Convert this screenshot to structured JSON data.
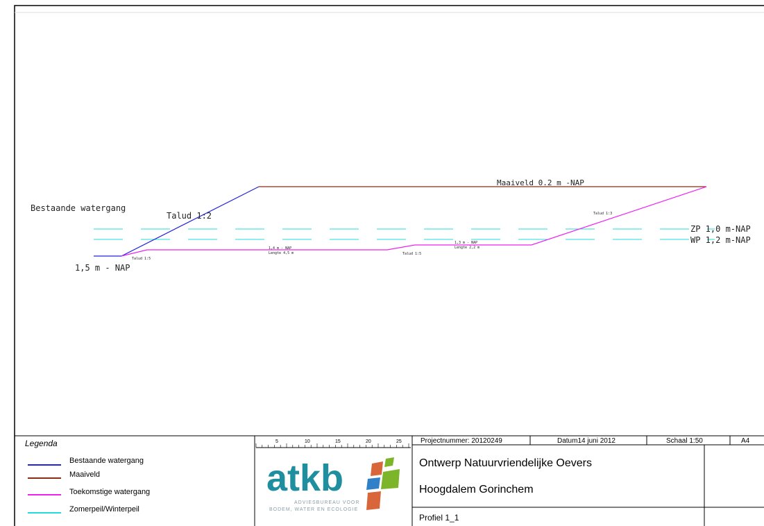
{
  "drawing": {
    "title_left": "Bestaande watergang",
    "talud_12": "Talud 1:2",
    "depth_left": "1,5 m - NAP",
    "maaiveld_label": "Maaiveld 0.2 m -NAP",
    "zp_label": "ZP 1,0 m-NAP",
    "wp_label": "WP 1,2 m-NAP",
    "talud_13": "Talud 1:3",
    "talud_15_left": "Talud 1:5",
    "talud_15_mid": "Talud 1:5",
    "depth_14": "1,4 m - NAP",
    "length_45": "Lengte 4,5 m",
    "depth_13": "1,3 m - NAP",
    "length_22": "Lengte 2,2 m"
  },
  "colors": {
    "bestaande": "#2222dd",
    "maaiveld": "#8b2b14",
    "toekomstig": "#ee22ee",
    "peil": "#22dddd",
    "logo_dark": "#1f8fa0",
    "logo_green": "#7cb52a",
    "logo_orange": "#d9663a",
    "logo_blue": "#2f7fc9"
  },
  "legend": {
    "title": "Legenda",
    "items": [
      {
        "label": "Bestaande watergang",
        "color": "#2222dd"
      },
      {
        "label": "Maaiveld",
        "color": "#8b2b14"
      },
      {
        "label": "Toekomstige watergang",
        "color": "#ee22ee"
      },
      {
        "label": "Zomerpeil/Winterpeil",
        "color": "#22dddd"
      }
    ]
  },
  "scale_bar": {
    "ticks": [
      "5",
      "10",
      "15",
      "20",
      "25"
    ]
  },
  "title_block": {
    "project_number": "Projectnummer:  20120249",
    "date": "Datum14 juni 2012",
    "scale": "Schaal 1:50",
    "paper": "A4",
    "title_line1": "Ontwerp Natuurvriendelijke Oevers",
    "title_line2": "Hoogdalem Gorinchem",
    "profile": "Profiel 1_1"
  },
  "logo": {
    "text": "atkb",
    "tagline1": "ADVIESBUREAU VOOR",
    "tagline2": "BODEM, WATER EN ECOLOGIE"
  }
}
